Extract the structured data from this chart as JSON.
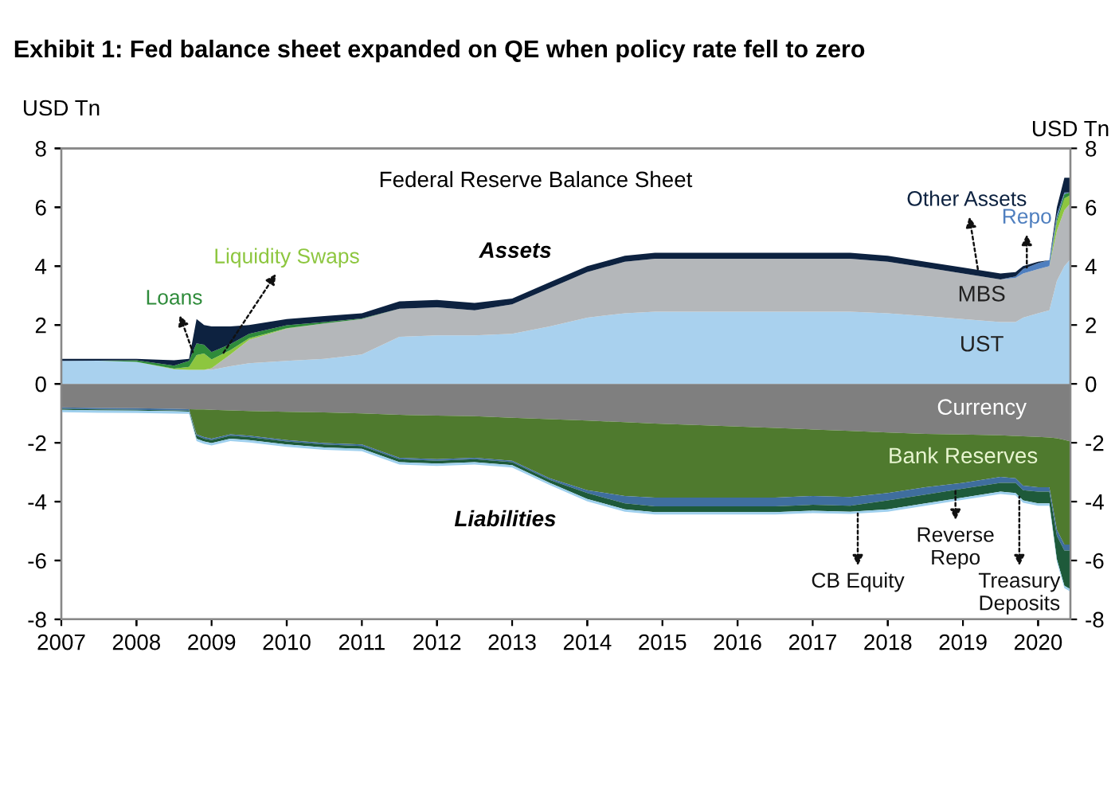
{
  "chart_data": [
    {
      "type": "area",
      "stacked": true,
      "legend": false,
      "grid": false,
      "title": "Exhibit 1: Fed balance sheet expanded on QE when policy rate fell to zero",
      "ylabel": "USD Tn",
      "y2label": "USD Tn",
      "annotations": [
        "Federal Reserve Balance Sheet",
        "Assets"
      ],
      "x": [
        2007,
        2007.5,
        2008,
        2008.5,
        2008.7,
        2008.8,
        2008.9,
        2009,
        2009.25,
        2009.5,
        2010,
        2010.5,
        2011,
        2011.5,
        2012,
        2012.5,
        2013,
        2013.5,
        2014,
        2014.5,
        2014.9,
        2015.5,
        2016,
        2016.5,
        2017,
        2017.5,
        2018,
        2018.5,
        2019,
        2019.5,
        2019.7,
        2019.8,
        2020,
        2020.15,
        2020.25,
        2020.35,
        2020.42
      ],
      "xlim": [
        2007,
        2020.43
      ],
      "xticks": [
        2007,
        2008,
        2009,
        2010,
        2011,
        2012,
        2013,
        2014,
        2015,
        2016,
        2017,
        2018,
        2019,
        2020
      ],
      "ylim": [
        -8,
        8
      ],
      "yticks": [
        -8,
        -6,
        -4,
        -2,
        0,
        2,
        4,
        6,
        8
      ],
      "y2lim": [
        -8,
        8
      ],
      "y2ticks": [
        -8,
        -6,
        -4,
        -2,
        0,
        2,
        4,
        6,
        8
      ],
      "series": [
        {
          "name": "UST",
          "color": "#a9d1ee",
          "values": [
            0.78,
            0.79,
            0.75,
            0.5,
            0.48,
            0.48,
            0.48,
            0.48,
            0.6,
            0.7,
            0.78,
            0.85,
            1.0,
            1.6,
            1.65,
            1.65,
            1.7,
            1.95,
            2.25,
            2.4,
            2.45,
            2.45,
            2.45,
            2.45,
            2.45,
            2.45,
            2.4,
            2.3,
            2.2,
            2.1,
            2.1,
            2.25,
            2.4,
            2.5,
            3.5,
            4.0,
            4.2
          ]
        },
        {
          "name": "MBS",
          "color": "#b4b7ba",
          "values": [
            0,
            0,
            0,
            0,
            0,
            0,
            0,
            0.05,
            0.4,
            0.8,
            1.1,
            1.2,
            1.2,
            0.95,
            0.95,
            0.85,
            1.0,
            1.3,
            1.55,
            1.75,
            1.8,
            1.8,
            1.8,
            1.8,
            1.8,
            1.8,
            1.75,
            1.65,
            1.55,
            1.45,
            1.5,
            1.5,
            1.5,
            1.5,
            1.7,
            1.9,
            1.9
          ]
        },
        {
          "name": "Liquidity Swaps",
          "color": "#8dc63f",
          "values": [
            0,
            0,
            0,
            0.02,
            0.1,
            0.5,
            0.55,
            0.3,
            0.15,
            0.05,
            0.01,
            0,
            0,
            0,
            0,
            0,
            0,
            0,
            0,
            0,
            0,
            0,
            0,
            0,
            0,
            0,
            0,
            0,
            0,
            0,
            0,
            0,
            0,
            0,
            0.3,
            0.4,
            0.3
          ]
        },
        {
          "name": "Loans",
          "color": "#2e8b3a",
          "values": [
            0,
            0,
            0.05,
            0.1,
            0.2,
            0.4,
            0.3,
            0.25,
            0.2,
            0.15,
            0.1,
            0.05,
            0.02,
            0,
            0,
            0,
            0,
            0,
            0,
            0,
            0,
            0,
            0,
            0,
            0,
            0,
            0,
            0,
            0,
            0,
            0,
            0,
            0,
            0,
            0.1,
            0.15,
            0.1
          ]
        },
        {
          "name": "Repo",
          "color": "#4f7fbf",
          "values": [
            0,
            0,
            0,
            0,
            0,
            0,
            0,
            0,
            0,
            0,
            0,
            0,
            0,
            0,
            0,
            0,
            0,
            0,
            0,
            0,
            0,
            0,
            0,
            0,
            0,
            0,
            0,
            0,
            0,
            0,
            0.05,
            0.15,
            0.2,
            0.2,
            0.15,
            0.05,
            0
          ]
        },
        {
          "name": "Other Assets",
          "color": "#0d2240",
          "values": [
            0.07,
            0.06,
            0.05,
            0.18,
            0.07,
            0.82,
            0.67,
            0.87,
            0.6,
            0.3,
            0.21,
            0.2,
            0.18,
            0.25,
            0.25,
            0.25,
            0.2,
            0.2,
            0.2,
            0.2,
            0.2,
            0.2,
            0.2,
            0.2,
            0.2,
            0.2,
            0.2,
            0.2,
            0.2,
            0.2,
            0.15,
            0.1,
            0.05,
            0,
            0.25,
            0.5,
            0.5
          ]
        }
      ]
    },
    {
      "type": "area",
      "stacked": true,
      "tick_labels": false,
      "annotations": [
        "Liabilities"
      ],
      "x": [
        2007,
        2007.5,
        2008,
        2008.5,
        2008.7,
        2008.8,
        2008.9,
        2009,
        2009.25,
        2009.5,
        2010,
        2010.5,
        2011,
        2011.5,
        2012,
        2012.5,
        2013,
        2013.5,
        2014,
        2014.5,
        2014.9,
        2015.5,
        2016,
        2016.5,
        2017,
        2017.5,
        2018,
        2018.5,
        2019,
        2019.5,
        2019.7,
        2019.8,
        2020,
        2020.15,
        2020.25,
        2020.35,
        2020.42
      ],
      "xlim": [
        2007,
        2020.43
      ],
      "ylim": [
        -8,
        8
      ],
      "series": [
        {
          "name": "Currency",
          "color": "#7f7f7f",
          "values": [
            -0.8,
            -0.82,
            -0.83,
            -0.85,
            -0.86,
            -0.87,
            -0.87,
            -0.88,
            -0.9,
            -0.92,
            -0.95,
            -0.97,
            -1.0,
            -1.05,
            -1.08,
            -1.1,
            -1.15,
            -1.2,
            -1.25,
            -1.3,
            -1.35,
            -1.4,
            -1.45,
            -1.5,
            -1.55,
            -1.6,
            -1.65,
            -1.7,
            -1.72,
            -1.75,
            -1.77,
            -1.78,
            -1.8,
            -1.82,
            -1.85,
            -1.9,
            -1.95
          ]
        },
        {
          "name": "Bank Reserves",
          "color": "#4f7a2e",
          "values": [
            0,
            0,
            0,
            0,
            0,
            -0.84,
            -0.94,
            -0.98,
            -0.81,
            -0.84,
            -0.96,
            -1.04,
            -1.06,
            -1.46,
            -1.48,
            -1.41,
            -1.46,
            -2.01,
            -2.36,
            -2.51,
            -2.51,
            -2.46,
            -2.41,
            -2.36,
            -2.26,
            -2.24,
            -2.06,
            -1.81,
            -1.64,
            -1.41,
            -1.44,
            -1.68,
            -1.71,
            -1.69,
            -3.11,
            -3.56,
            -3.51
          ]
        },
        {
          "name": "Reverse Repo",
          "color": "#3f6e9e",
          "values": [
            -0.05,
            -0.05,
            -0.05,
            -0.05,
            -0.05,
            -0.05,
            -0.05,
            -0.05,
            -0.05,
            -0.05,
            -0.05,
            -0.05,
            -0.05,
            -0.05,
            -0.05,
            -0.05,
            -0.05,
            -0.05,
            -0.1,
            -0.25,
            -0.3,
            -0.3,
            -0.3,
            -0.3,
            -0.3,
            -0.3,
            -0.25,
            -0.25,
            -0.2,
            -0.2,
            -0.15,
            -0.15,
            -0.15,
            -0.15,
            -0.2,
            -0.2,
            -0.2
          ]
        },
        {
          "name": "Treasury Deposits",
          "color": "#1e5a3a",
          "values": [
            -0.03,
            -0.03,
            -0.03,
            -0.03,
            -0.03,
            -0.1,
            -0.1,
            -0.1,
            -0.1,
            -0.1,
            -0.1,
            -0.1,
            -0.1,
            -0.1,
            -0.1,
            -0.1,
            -0.1,
            -0.1,
            -0.2,
            -0.2,
            -0.2,
            -0.2,
            -0.2,
            -0.2,
            -0.2,
            -0.2,
            -0.3,
            -0.3,
            -0.3,
            -0.3,
            -0.35,
            -0.35,
            -0.4,
            -0.4,
            -0.8,
            -1.2,
            -1.3
          ]
        },
        {
          "name": "CB Equity",
          "color": "#9fd0ee",
          "values": [
            -0.08,
            -0.08,
            -0.08,
            -0.08,
            -0.08,
            -0.08,
            -0.08,
            -0.08,
            -0.08,
            -0.08,
            -0.08,
            -0.08,
            -0.08,
            -0.08,
            -0.08,
            -0.08,
            -0.08,
            -0.08,
            -0.08,
            -0.08,
            -0.08,
            -0.08,
            -0.08,
            -0.08,
            -0.08,
            -0.08,
            -0.08,
            -0.08,
            -0.08,
            -0.08,
            -0.08,
            -0.08,
            -0.08,
            -0.08,
            -0.08,
            -0.08,
            -0.08
          ]
        }
      ]
    }
  ]
}
